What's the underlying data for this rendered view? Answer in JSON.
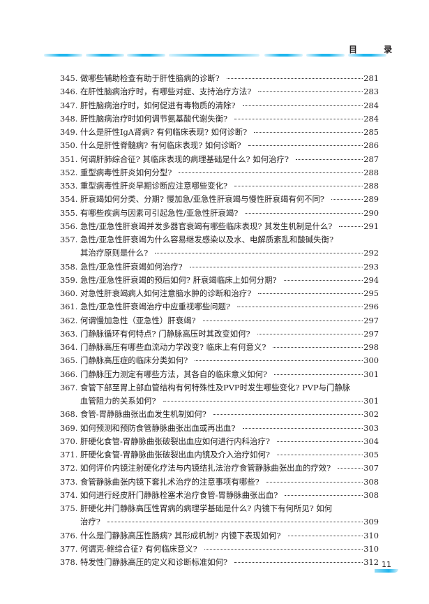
{
  "header": {
    "title": "目 录",
    "accent_color": "#1fb6ee"
  },
  "page_number": "11",
  "items": [
    {
      "num": "345.",
      "lines": [
        "做哪些辅助检查有助于肝性脑病的诊断?"
      ],
      "page": "281"
    },
    {
      "num": "346.",
      "lines": [
        "在肝性脑病治疗时，有哪些对症、支持治疗方法?"
      ],
      "page": "283"
    },
    {
      "num": "347.",
      "lines": [
        "肝性脑病治疗时，如何促进有毒物质的清除?"
      ],
      "page": "284"
    },
    {
      "num": "348.",
      "lines": [
        "肝性脑病治疗时如何调节氨基酸代谢失衡?"
      ],
      "page": "284"
    },
    {
      "num": "349.",
      "lines": [
        "什么是肝性IgA肾病? 有何临床表现? 如何诊断?"
      ],
      "page": "285"
    },
    {
      "num": "350.",
      "lines": [
        "什么是肝性脊髓病? 有何临床表现? 如何诊断?"
      ],
      "page": "286"
    },
    {
      "num": "351.",
      "lines": [
        "何谓肝肺综合征? 其临床表现的病理基础是什么? 如何治疗?"
      ],
      "page": "287"
    },
    {
      "num": "352.",
      "lines": [
        "重型病毒性肝炎如何分型?"
      ],
      "page": "288"
    },
    {
      "num": "353.",
      "lines": [
        "重型病毒性肝炎早期诊断应注意哪些变化?"
      ],
      "page": "288"
    },
    {
      "num": "354.",
      "lines": [
        "肝衰竭如何分类、分期? 慢加急/亚急性肝衰竭与慢性肝衰竭有何不同?"
      ],
      "page": "289"
    },
    {
      "num": "355.",
      "lines": [
        "有哪些疾病与因素可引起急性/亚急性肝衰竭?"
      ],
      "page": "290"
    },
    {
      "num": "356.",
      "lines": [
        "急性/亚急性肝衰竭并发多器官衰竭有哪些临床表现? 其发生机制是什么?"
      ],
      "page": "291"
    },
    {
      "num": "357.",
      "lines": [
        "急性/亚急性肝衰竭为什么容易继发感染以及水、电解质紊乱和酸碱失衡?",
        "其治疗原则是什么?"
      ],
      "page": "292"
    },
    {
      "num": "358.",
      "lines": [
        "急性/亚急性肝衰竭如何治疗?"
      ],
      "page": "293"
    },
    {
      "num": "359.",
      "lines": [
        "急性/亚急性肝衰竭的预后如何? 肝衰竭临床上如何分期?"
      ],
      "page": "294"
    },
    {
      "num": "360.",
      "lines": [
        "对急性肝衰竭病人如何注意脑水肿的诊断和治疗?"
      ],
      "page": "295"
    },
    {
      "num": "361.",
      "lines": [
        "急性/亚急性肝衰竭治疗中应重视哪些问题?"
      ],
      "page": "296"
    },
    {
      "num": "362.",
      "lines": [
        "何谓慢加急性（亚急性）肝衰竭?"
      ],
      "page": "297"
    },
    {
      "num": "363.",
      "lines": [
        "门静脉循环有何特点? 门静脉高压时其改变如何?"
      ],
      "page": "297"
    },
    {
      "num": "364.",
      "lines": [
        "门静脉高压有哪些血流动力学改变? 临床上有何意义?"
      ],
      "page": "298"
    },
    {
      "num": "365.",
      "lines": [
        "门静脉高压症的临床分类如何?"
      ],
      "page": "300"
    },
    {
      "num": "366.",
      "lines": [
        "门静脉压力测定有哪些方法，其各自的临床意义如何?"
      ],
      "page": "301"
    },
    {
      "num": "367.",
      "lines": [
        "食管下部至胃上部血管结构有何特殊性及PVP时发生哪些变化? PVP与门静脉",
        "血管阻力的关系如何?"
      ],
      "page": "301"
    },
    {
      "num": "368.",
      "lines": [
        "食管-胃静脉曲张出血发生机制如何?"
      ],
      "page": "302"
    },
    {
      "num": "369.",
      "lines": [
        "如何预测和预防食管静脉曲张出血或再出血?"
      ],
      "page": "303"
    },
    {
      "num": "370.",
      "lines": [
        "肝硬化食管-胃静脉曲张破裂出血应如何进行内科治疗?"
      ],
      "page": "304"
    },
    {
      "num": "371.",
      "lines": [
        "肝硬化食管-胃静脉曲张破裂出血内镜及介入治疗如何?"
      ],
      "page": "305"
    },
    {
      "num": "372.",
      "lines": [
        "如何评价内镜注射硬化疗法与内镜结扎法治疗食管静脉曲张出血的疗效?"
      ],
      "page": "307"
    },
    {
      "num": "373.",
      "lines": [
        "食管静脉曲张内镜下套扎术治疗的注意事项有哪些?"
      ],
      "page": "308"
    },
    {
      "num": "374.",
      "lines": [
        "如何进行经皮肝门静脉栓塞术治疗食管-胃静脉曲张出血?"
      ],
      "page": "308"
    },
    {
      "num": "375.",
      "lines": [
        "肝硬化并门静脉高压性胃病的病理学基础是什么? 内镜下有何所见? 如何",
        "治疗?"
      ],
      "page": "309"
    },
    {
      "num": "376.",
      "lines": [
        "什么是门静脉高压性肠病? 其形成机制? 内镜下表现如何?"
      ],
      "page": "310"
    },
    {
      "num": "377.",
      "lines": [
        "何谓克-鲍综合征? 有何临床意义?"
      ],
      "page": "310"
    },
    {
      "num": "378.",
      "lines": [
        "特发性门静脉高压的定义和诊断标准如何?"
      ],
      "page": "312"
    }
  ]
}
